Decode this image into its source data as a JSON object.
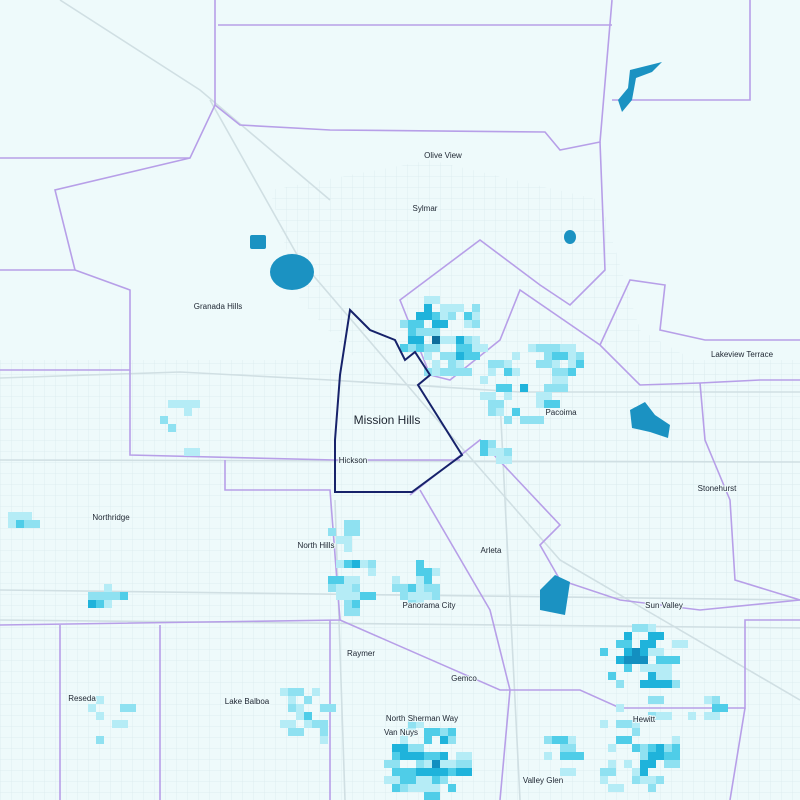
{
  "map": {
    "places": [
      "Olive View",
      "Sylmar",
      "Granada Hills",
      "Lakeview Terrace",
      "Mission Hills",
      "Pacoima",
      "Hickson",
      "Stonehurst",
      "Northridge",
      "North Hills",
      "Arleta",
      "Panorama City",
      "Sun Valley",
      "Raymer",
      "Gemco",
      "Lake Balboa",
      "Reseda",
      "North Sherman Way",
      "Van Nuys",
      "Hewitt",
      "Valley Glen"
    ]
  }
}
